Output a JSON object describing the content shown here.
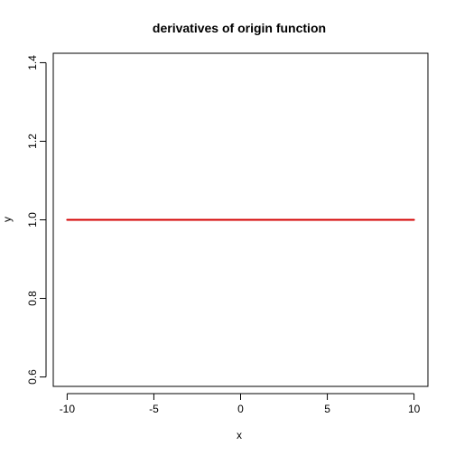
{
  "chart_data": {
    "type": "line",
    "title": "derivatives of origin function",
    "xlabel": "x",
    "ylabel": "y",
    "xlim": [
      -10.8,
      10.8
    ],
    "ylim": [
      0.576,
      1.424
    ],
    "xticks": [
      -10,
      -5,
      0,
      5,
      10
    ],
    "xtick_labels": [
      "-10",
      "-5",
      "0",
      "5",
      "10"
    ],
    "yticks": [
      0.6,
      0.8,
      1.0,
      1.2,
      1.4
    ],
    "ytick_labels": [
      "0.6",
      "0.8",
      "1.0",
      "1.2",
      "1.4"
    ],
    "grid": false,
    "series": [
      {
        "color": "#d40000",
        "x": [
          -10,
          10
        ],
        "y": [
          1.0,
          1.0
        ]
      }
    ]
  }
}
